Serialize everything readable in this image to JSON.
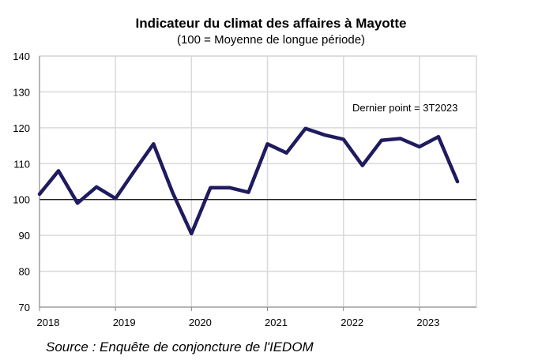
{
  "chart_data": {
    "type": "line",
    "title": "Indicateur du climat des affaires à Mayotte",
    "subtitle": "(100 = Moyenne de longue période)",
    "annotation": "Dernier point  = 3T2023",
    "source": "Source : Enquête de conjoncture de l'IEDOM",
    "ylim": [
      70,
      140
    ],
    "yticks": [
      70,
      80,
      90,
      100,
      110,
      120,
      130,
      140
    ],
    "xlim": [
      2018.0,
      2023.75
    ],
    "xticks": [
      2018,
      2019,
      2020,
      2021,
      2022,
      2023
    ],
    "xtick_labels": [
      "2018",
      "2019",
      "2020",
      "2021",
      "2022",
      "2023"
    ],
    "reference_line": 100,
    "grid": true,
    "line_color": "#1f1b5e",
    "series": [
      {
        "x": [
          2018.0,
          2018.25,
          2018.5,
          2018.75,
          2019.0,
          2019.25,
          2019.5,
          2019.75,
          2020.0,
          2020.25,
          2020.5,
          2020.75,
          2021.0,
          2021.25,
          2021.5,
          2021.75,
          2022.0,
          2022.25,
          2022.5,
          2022.75,
          2023.0,
          2023.25,
          2023.5
        ],
        "values": [
          101.5,
          108,
          99,
          103.5,
          100.3,
          108,
          115.5,
          102,
          90.5,
          103.3,
          103.3,
          102,
          115.5,
          113,
          119.8,
          118,
          116.8,
          109.5,
          116.5,
          117,
          114.7,
          117.5,
          105
        ]
      }
    ]
  }
}
